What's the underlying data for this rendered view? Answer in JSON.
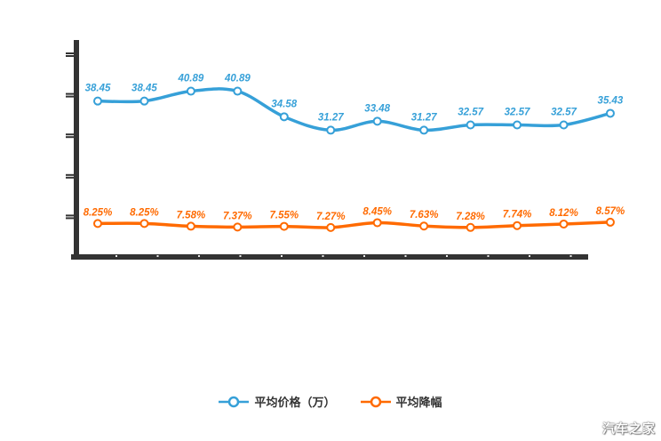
{
  "watermark": "汽车之家",
  "chart_data": {
    "type": "line",
    "title": "",
    "xlabel": "",
    "ylabel": "",
    "x_count": 12,
    "x_tick_labels": [],
    "ylim": [
      0,
      50
    ],
    "y_tick_step": 10,
    "grid": false,
    "legend_position": "bottom-center",
    "axis_color": "#333333",
    "series": [
      {
        "name": "平均价格（万）",
        "color": "#36a0d8",
        "values": [
          38.45,
          38.45,
          40.89,
          40.89,
          34.58,
          31.27,
          33.48,
          31.27,
          32.57,
          32.57,
          32.57,
          35.43
        ],
        "labels": [
          "38.45",
          "38.45",
          "40.89",
          "40.89",
          "34.58",
          "31.27",
          "33.48",
          "31.27",
          "32.57",
          "32.57",
          "32.57",
          "35.43"
        ]
      },
      {
        "name": "平均降幅",
        "color": "#ff6a00",
        "values": [
          8.25,
          8.25,
          7.58,
          7.37,
          7.55,
          7.27,
          8.45,
          7.63,
          7.28,
          7.74,
          8.12,
          8.57
        ],
        "labels": [
          "8.25%",
          "8.25%",
          "7.58%",
          "7.37%",
          "7.55%",
          "7.27%",
          "8.45%",
          "7.63%",
          "7.28%",
          "7.74%",
          "8.12%",
          "8.57%"
        ]
      }
    ]
  }
}
